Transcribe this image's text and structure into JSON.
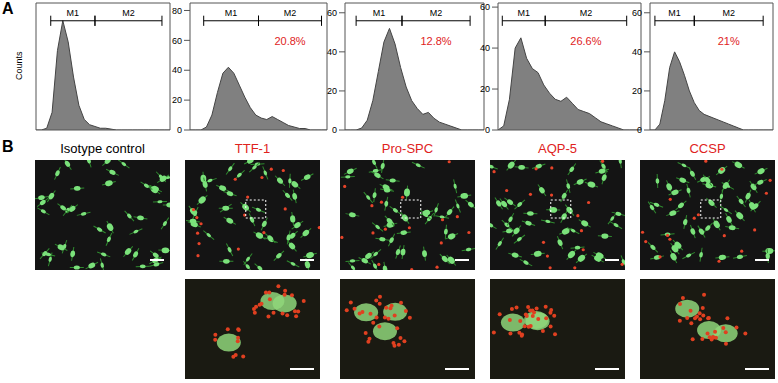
{
  "panels": [
    "A",
    "B"
  ],
  "chart_data": [
    {
      "type": "area",
      "color": "#808080",
      "y_label": "Counts",
      "tick_labels": false,
      "xlim": [
        0,
        100
      ],
      "xticks": [],
      "ylim": [
        0,
        72
      ],
      "yticks": [],
      "x": [
        0,
        4,
        8,
        12,
        16,
        20,
        24,
        28,
        32,
        36,
        40,
        44,
        48,
        52,
        56,
        60,
        64,
        68,
        72,
        76,
        80,
        84,
        88,
        92,
        96,
        100
      ],
      "values": [
        0,
        0,
        1,
        10,
        45,
        62,
        50,
        30,
        14,
        6,
        3,
        2,
        1,
        1,
        0.5,
        0,
        0,
        0,
        0,
        0,
        0,
        0,
        0,
        0,
        0,
        0
      ],
      "gates": [
        {
          "label": "M1",
          "range": [
            11,
            44
          ]
        },
        {
          "label": "M2",
          "range": [
            44,
            94
          ]
        }
      ]
    },
    {
      "type": "area",
      "color": "#808080",
      "tick_labels": "y",
      "xlim": [
        0,
        100
      ],
      "xticks": [],
      "ylim": [
        0,
        85
      ],
      "yticks": [
        0,
        20,
        40,
        60,
        80
      ],
      "x": [
        0,
        4,
        8,
        12,
        16,
        20,
        24,
        28,
        32,
        36,
        40,
        44,
        48,
        52,
        56,
        60,
        64,
        68,
        72,
        76,
        80,
        84,
        88,
        92,
        96,
        100
      ],
      "values": [
        0,
        0,
        0,
        2,
        10,
        25,
        38,
        42,
        38,
        30,
        22,
        15,
        10,
        8,
        7,
        9,
        7,
        5,
        3,
        2,
        1,
        1,
        0,
        0,
        0,
        0
      ],
      "gates": [
        {
          "label": "M1",
          "range": [
            10,
            50
          ]
        },
        {
          "label": "M2",
          "range": [
            50,
            96
          ],
          "annotation": "20.8%"
        }
      ]
    },
    {
      "type": "area",
      "color": "#808080",
      "tick_labels": "y",
      "xlim": [
        0,
        100
      ],
      "xticks": [],
      "ylim": [
        0,
        65
      ],
      "yticks": [
        0,
        20,
        40,
        60
      ],
      "x": [
        0,
        4,
        8,
        12,
        16,
        20,
        24,
        28,
        32,
        36,
        40,
        44,
        48,
        52,
        56,
        60,
        64,
        68,
        72,
        76,
        80,
        84,
        88,
        92,
        96,
        100
      ],
      "values": [
        0,
        0,
        0,
        1,
        5,
        15,
        30,
        45,
        52,
        44,
        32,
        22,
        15,
        11,
        8,
        9,
        6,
        4,
        3,
        2,
        1,
        0,
        0,
        0,
        0,
        0
      ],
      "gates": [
        {
          "label": "M1",
          "range": [
            8,
            41
          ]
        },
        {
          "label": "M2",
          "range": [
            41,
            90
          ],
          "annotation": "12.8%"
        }
      ]
    },
    {
      "type": "area",
      "color": "#808080",
      "tick_labels": "y",
      "xlim": [
        0,
        100
      ],
      "xticks": [],
      "ylim": [
        0,
        62
      ],
      "yticks": [
        0,
        20,
        40,
        60
      ],
      "x": [
        0,
        4,
        8,
        12,
        16,
        20,
        24,
        28,
        32,
        36,
        40,
        44,
        48,
        52,
        56,
        60,
        64,
        68,
        72,
        76,
        80,
        84,
        88,
        92,
        96,
        100
      ],
      "values": [
        0,
        2,
        15,
        40,
        45,
        35,
        30,
        28,
        22,
        18,
        15,
        14,
        16,
        13,
        10,
        9,
        8,
        6,
        4,
        3,
        2,
        1,
        0,
        0,
        0,
        0
      ],
      "gates": [
        {
          "label": "M1",
          "range": [
            3,
            33
          ]
        },
        {
          "label": "M2",
          "range": [
            33,
            90
          ],
          "annotation": "26.6%"
        }
      ]
    },
    {
      "type": "area",
      "color": "#808080",
      "tick_labels": "y",
      "xlim": [
        0,
        100
      ],
      "xticks": [],
      "ylim": [
        0,
        65
      ],
      "yticks": [
        0,
        20,
        40,
        60
      ],
      "x": [
        0,
        4,
        8,
        12,
        16,
        20,
        24,
        28,
        32,
        36,
        40,
        44,
        48,
        52,
        56,
        60,
        64,
        68,
        72,
        76,
        80,
        84,
        88,
        92,
        96,
        100
      ],
      "values": [
        0,
        0,
        3,
        15,
        32,
        40,
        35,
        28,
        20,
        14,
        10,
        8,
        7,
        6,
        5,
        4,
        3,
        2,
        1,
        0,
        0,
        0,
        0,
        0,
        0,
        0
      ],
      "gates": [
        {
          "label": "M1",
          "range": [
            4,
            36
          ]
        },
        {
          "label": "M2",
          "range": [
            36,
            92
          ],
          "annotation": "21%"
        }
      ]
    }
  ],
  "images": [
    {
      "label": "Isotype control",
      "color": "#000000",
      "stained": false
    },
    {
      "label": "TTF-1",
      "color": "#e0231e",
      "stained": true
    },
    {
      "label": "Pro-SPC",
      "color": "#e0231e",
      "stained": true
    },
    {
      "label": "AQP-5",
      "color": "#e0231e",
      "stained": true
    },
    {
      "label": "CCSP",
      "color": "#e0231e",
      "stained": true
    }
  ]
}
